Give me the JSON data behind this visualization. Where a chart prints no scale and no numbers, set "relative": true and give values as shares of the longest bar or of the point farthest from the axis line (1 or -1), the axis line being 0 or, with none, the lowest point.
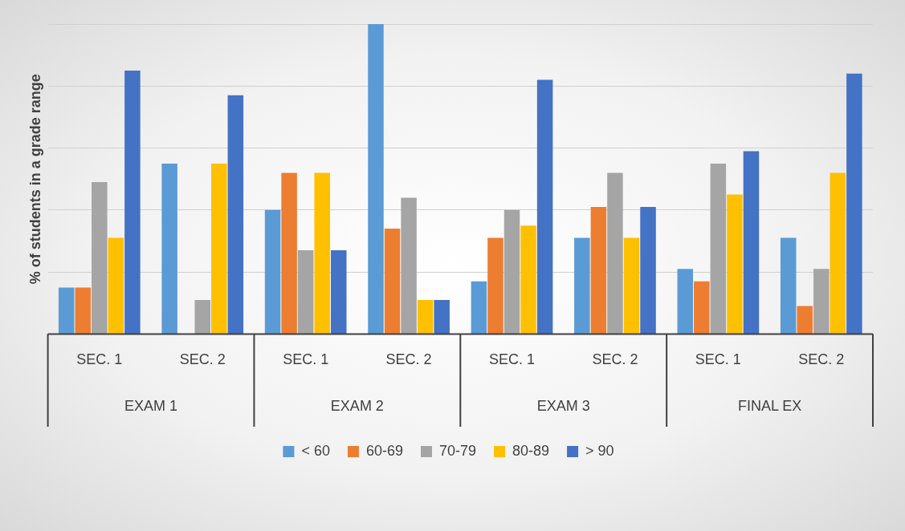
{
  "chart_data": {
    "type": "bar",
    "relative": true,
    "ylabel": "% of students in a grade range",
    "categories": [
      "SEC. 1",
      "SEC. 2",
      "SEC. 1",
      "SEC. 2",
      "SEC. 1",
      "SEC. 2",
      "SEC. 1",
      "SEC. 2"
    ],
    "annotations": [
      "EXAM 1",
      "EXAM 2",
      "EXAM 3",
      "FINAL EX"
    ],
    "series": [
      {
        "name": "< 60",
        "color": "#5b9bd5",
        "values": [
          0.15,
          0.55,
          0.4,
          1.0,
          0.17,
          0.31,
          0.21,
          0.31
        ]
      },
      {
        "name": "60-69",
        "color": "#ed7d31",
        "values": [
          0.15,
          0,
          0.52,
          0.34,
          0.31,
          0.41,
          0.17,
          0.09
        ]
      },
      {
        "name": "70-79",
        "color": "#a5a5a5",
        "values": [
          0.49,
          0.11,
          0.27,
          0.44,
          0.4,
          0.52,
          0.55,
          0.21
        ]
      },
      {
        "name": "80-89",
        "color": "#ffc000",
        "values": [
          0.31,
          0.55,
          0.52,
          0.11,
          0.35,
          0.31,
          0.45,
          0.52
        ]
      },
      {
        "name": "> 90",
        "color": "#4472c4",
        "values": [
          0.85,
          0.77,
          0.27,
          0.11,
          0.82,
          0.41,
          0.59,
          0.84
        ]
      }
    ],
    "grid": true,
    "legend": "bottom"
  }
}
